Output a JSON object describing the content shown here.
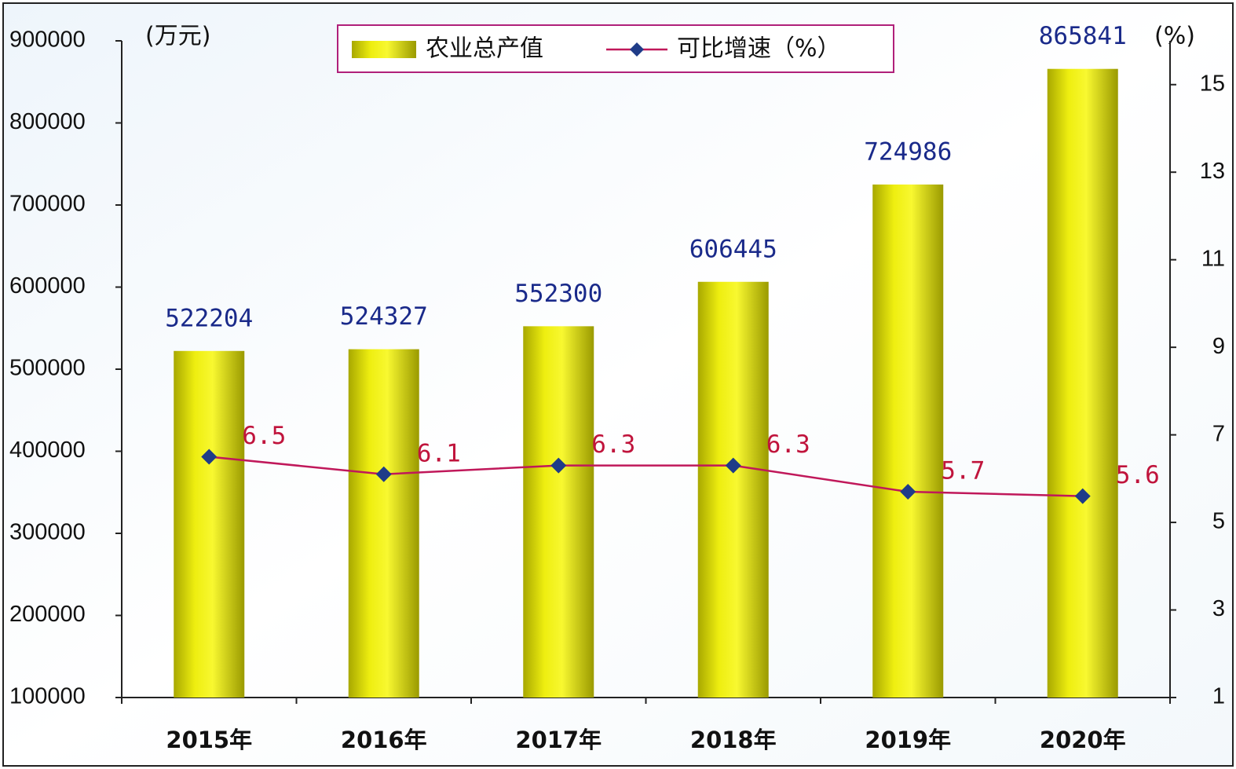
{
  "chart_data": {
    "type": "bar-line",
    "y_label": "(万元)",
    "y2_label": "(%)",
    "categories": [
      "2015年",
      "2016年",
      "2017年",
      "2018年",
      "2019年",
      "2020年"
    ],
    "series": [
      {
        "name": "农业总产值",
        "type": "bar",
        "color": "#eeee10",
        "values": [
          522204,
          524327,
          552300,
          606445,
          724986,
          865841
        ]
      },
      {
        "name": "可比增速（%）",
        "type": "line",
        "axis": "y2",
        "color": "#c0185a",
        "marker_color": "#1f3c88",
        "values": [
          6.5,
          6.1,
          6.3,
          6.3,
          5.7,
          5.6
        ]
      }
    ],
    "ylim": [
      100000,
      900000
    ],
    "yticks": [
      100000,
      200000,
      300000,
      400000,
      500000,
      600000,
      700000,
      800000,
      900000
    ],
    "y2lim": [
      1,
      16
    ],
    "y2ticks": [
      1,
      3,
      5,
      7,
      9,
      11,
      13,
      15
    ],
    "legend": "top",
    "grid": false
  }
}
